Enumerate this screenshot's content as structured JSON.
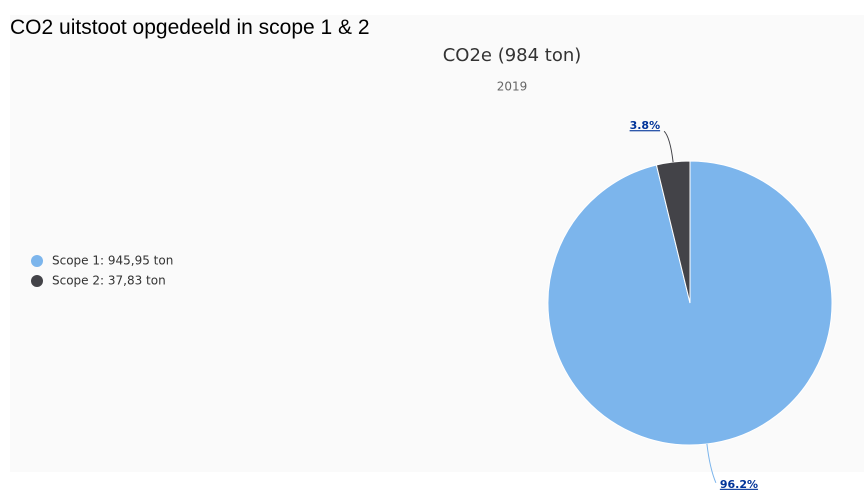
{
  "heading": "CO2 uitstoot opgedeeld in scope 1 & 2",
  "chart_data": {
    "type": "pie",
    "title": "CO2e (984 ton)",
    "subtitle": "2019",
    "categories": [
      "Scope 1: 945,95 ton",
      "Scope 2: 37,83 ton"
    ],
    "values": [
      96.2,
      3.8
    ],
    "value_labels": [
      "96.2%",
      "3.8%"
    ],
    "colors": [
      "#7cb5ec",
      "#434348"
    ],
    "legend": "left"
  }
}
